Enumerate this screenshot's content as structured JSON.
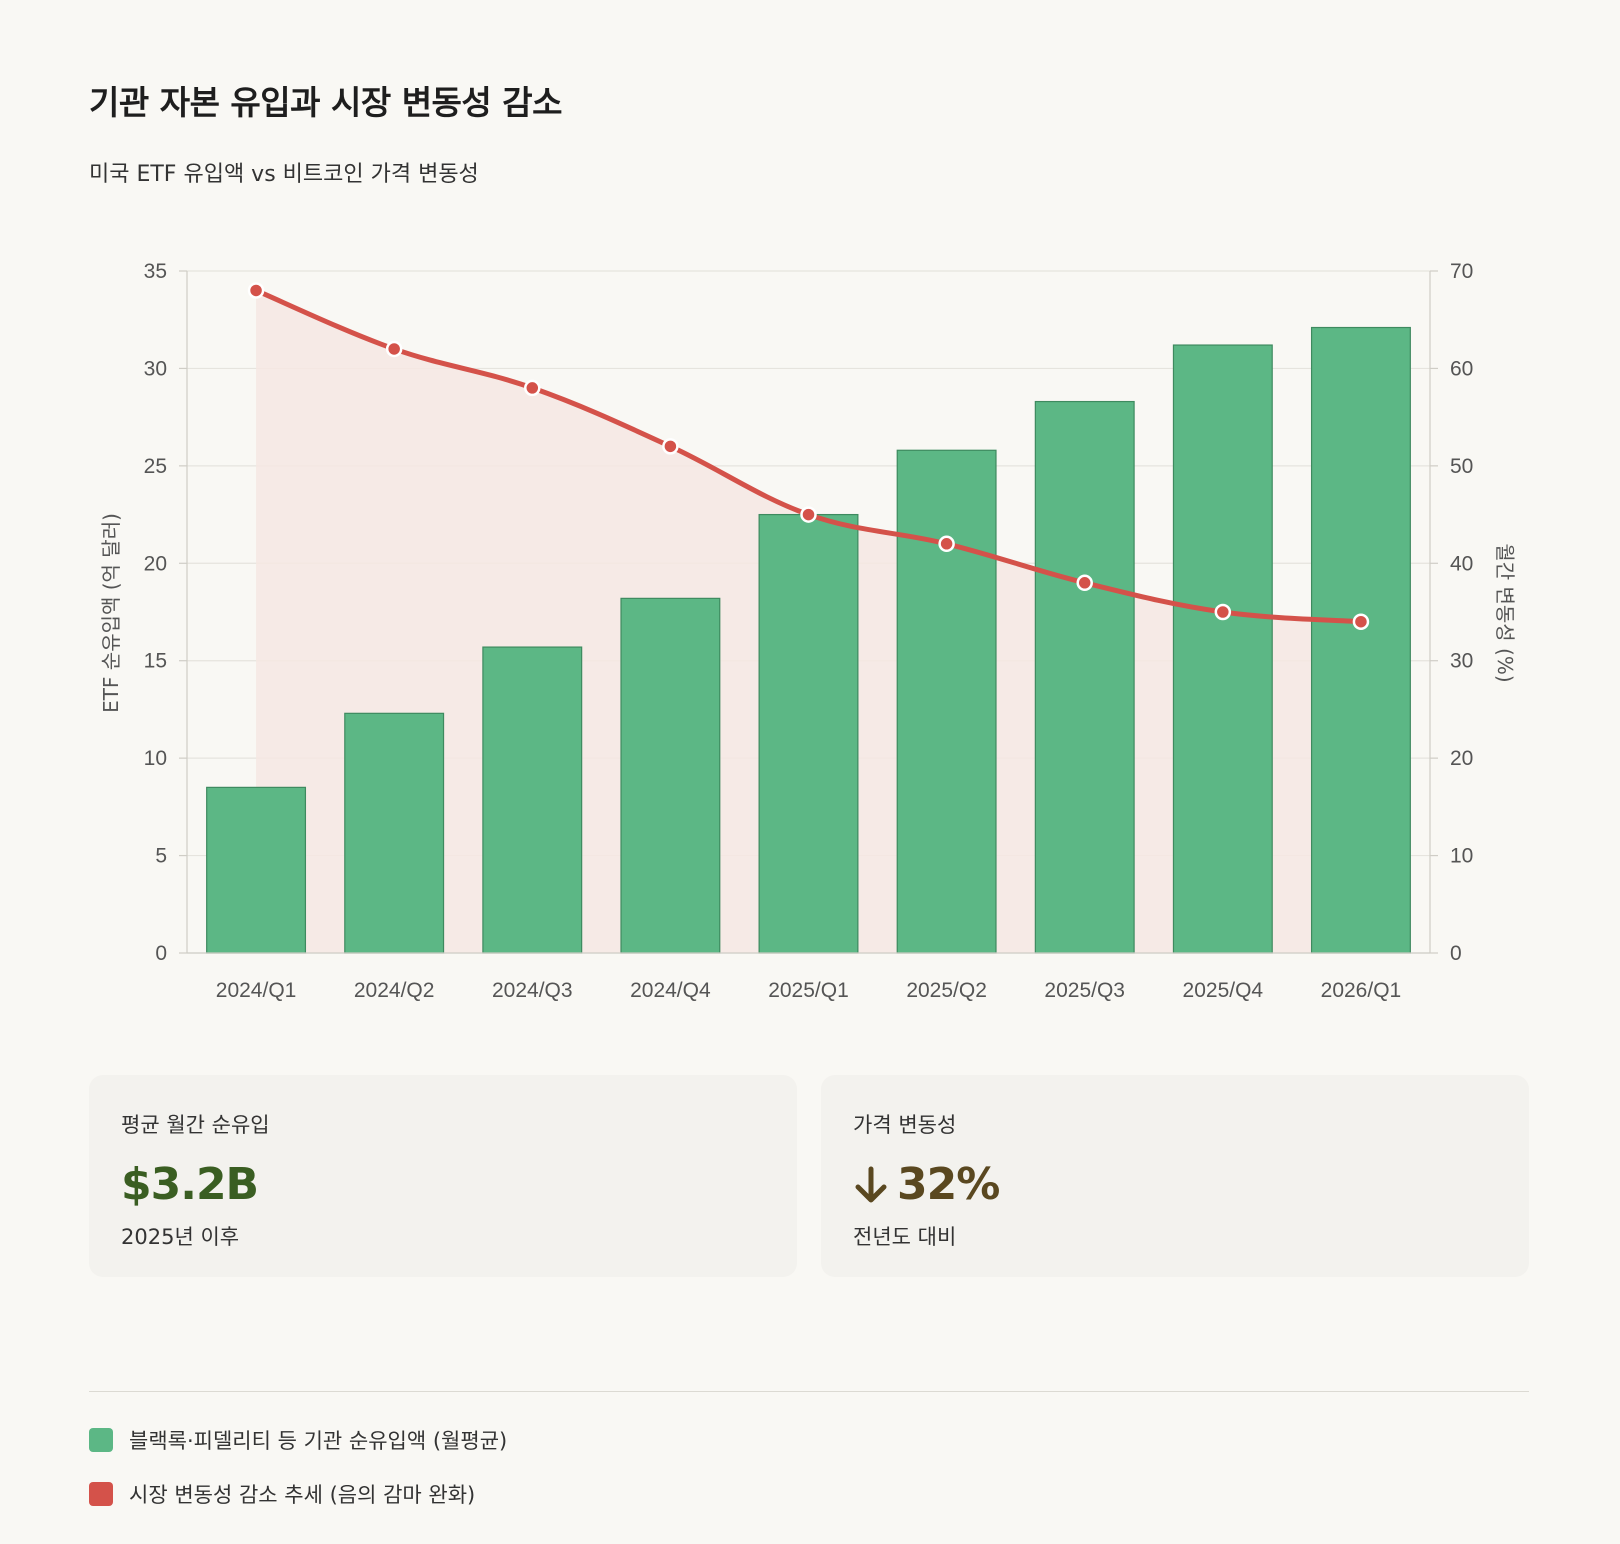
{
  "title": "기관 자본 유입과 시장 변동성 감소",
  "subtitle": "미국 ETF 유입액 vs 비트코인 가격 변동성",
  "colors": {
    "bar": "#5cb785",
    "bar_stroke": "#3e8a5f",
    "line": "#d4524a",
    "area": "#f6e8e3",
    "grid": "#e6e4de"
  },
  "chart_data": {
    "type": "bar",
    "categories": [
      "2024/Q1",
      "2024/Q2",
      "2024/Q3",
      "2024/Q4",
      "2025/Q1",
      "2025/Q2",
      "2025/Q3",
      "2025/Q4",
      "2026/Q1"
    ],
    "series": [
      {
        "name": "블랙록·피델리티 등 기관 순유입액 (월평균)",
        "type": "bar",
        "axis": "left",
        "values": [
          8.5,
          12.3,
          15.7,
          18.2,
          22.5,
          25.8,
          28.3,
          31.2,
          32.1
        ]
      },
      {
        "name": "시장 변동성 감소 추세 (음의 감마 완화)",
        "type": "line",
        "axis": "right",
        "values": [
          68,
          62,
          58,
          52,
          45,
          42,
          38,
          35,
          34
        ]
      }
    ],
    "ylabel": "ETF 순유입액 (억 달러)",
    "ylabel_right": "월간 변동성 (%)",
    "ylim": [
      0,
      35
    ],
    "ylim_right": [
      0,
      70
    ],
    "yticks": [
      "0",
      "5",
      "10",
      "15",
      "20",
      "25",
      "30",
      "35"
    ],
    "yticks_right": [
      "0",
      "10",
      "20",
      "30",
      "40",
      "50",
      "60",
      "70"
    ],
    "grid": true
  },
  "cards": [
    {
      "label": "평균 월간 순유입",
      "value": "$3.2B",
      "note": "2025년 이후"
    },
    {
      "label": "가격 변동성",
      "value": "32%",
      "icon": "arrow-down-icon",
      "note": "전년도 대비"
    }
  ],
  "legend": [
    {
      "label": "블랙록·피델리티 등 기관 순유입액 (월평균)",
      "color": "#5cb785"
    },
    {
      "label": "시장 변동성 감소 추세 (음의 감마 완화)",
      "color": "#d4524a"
    }
  ]
}
